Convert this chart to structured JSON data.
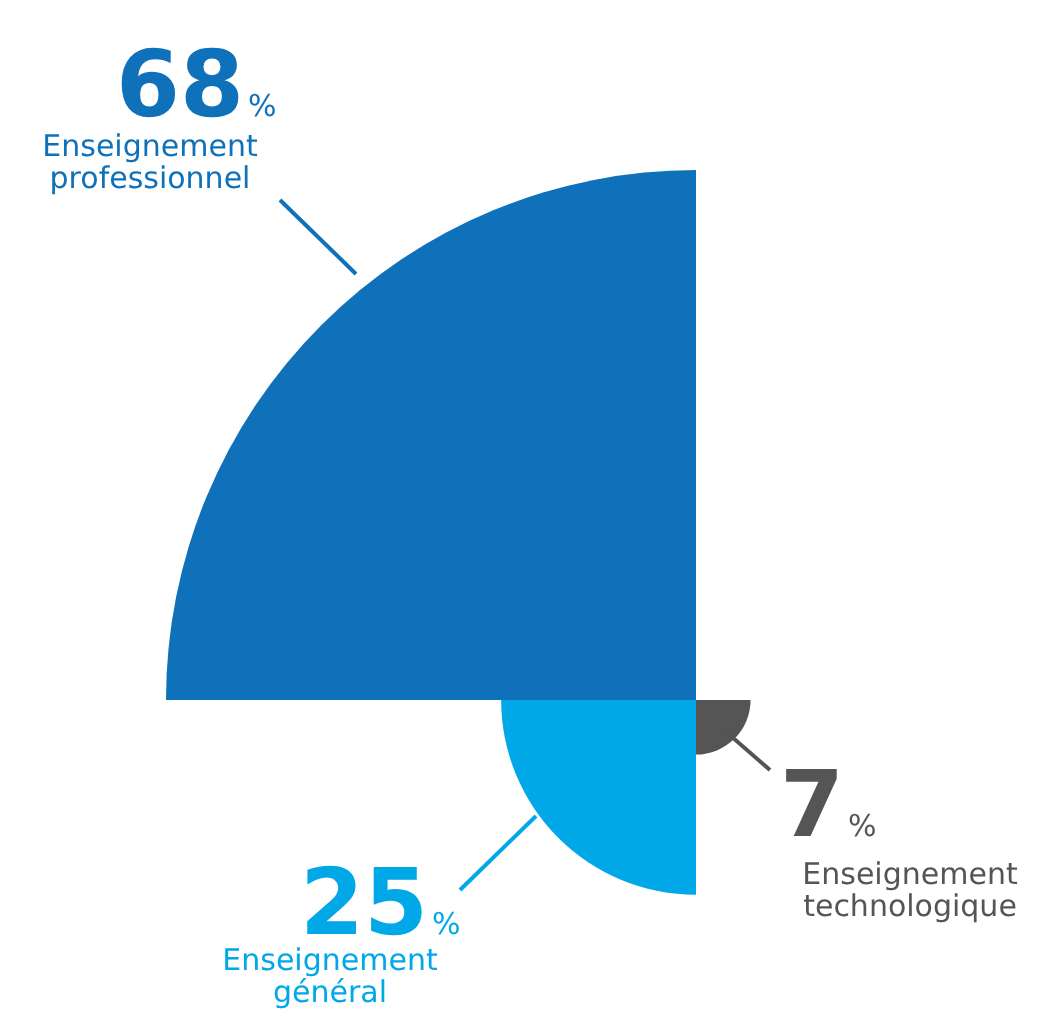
{
  "chart_data": {
    "type": "other",
    "categories": [
      "Enseignement professionnel",
      "Enseignement général",
      "Enseignement technologique"
    ],
    "values": [
      68,
      25,
      7
    ],
    "value_labels": [
      "68%",
      "25%",
      "7%"
    ],
    "colors": [
      "#0f71b9",
      "#00a8e8",
      "#555555"
    ]
  }
}
